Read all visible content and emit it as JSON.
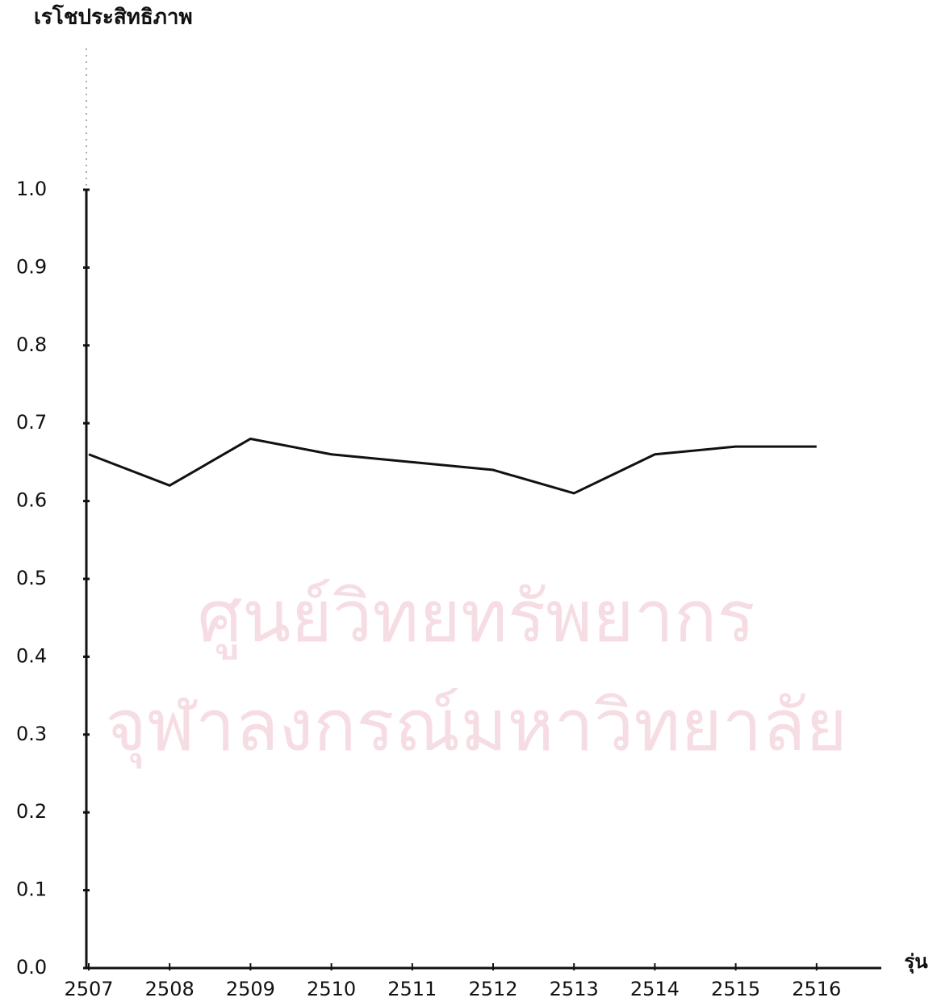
{
  "chart_data": {
    "type": "line",
    "title": "เรโชประสิทธิภาพ",
    "x_label": "รุ่น",
    "watermark": [
      "ศูนย์วิทยทรัพยากร",
      "จุฬาลงกรณ์มหาวิทยาลัย"
    ],
    "categories": [
      "2507",
      "2508",
      "2509",
      "2510",
      "2511",
      "2512",
      "2513",
      "2514",
      "2515",
      "2516"
    ],
    "series": [
      {
        "color": "#111111",
        "values": [
          0.66,
          0.62,
          0.68,
          0.66,
          0.65,
          0.64,
          0.61,
          0.66,
          0.67,
          0.67
        ]
      }
    ],
    "ylim": [
      0,
      1
    ],
    "yticks": [
      {
        "value": 0,
        "label": "0.0"
      },
      0.1,
      0.2,
      0.3,
      0.4,
      0.5,
      0.6,
      0.7,
      0.8,
      0.9,
      {
        "value": 1,
        "label": "1.0"
      }
    ],
    "grid": false
  }
}
